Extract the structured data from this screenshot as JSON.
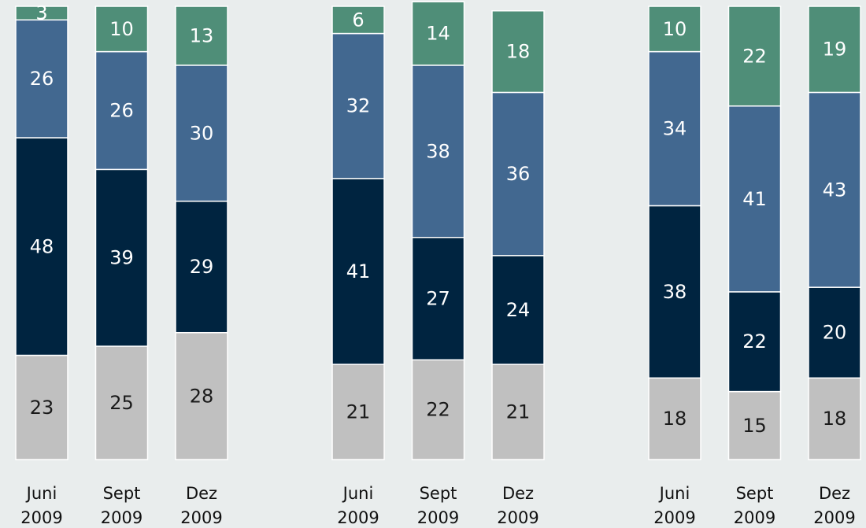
{
  "chart_data": [
    {
      "type": "stacked-bar",
      "categories": [
        "Juni 2009",
        "Sept 2009",
        "Dez 2009"
      ],
      "ylim": [
        0,
        100
      ],
      "series": [
        {
          "color": "#c0c0c0",
          "values": [
            23,
            25,
            28
          ]
        },
        {
          "color": "#002440",
          "values": [
            48,
            39,
            29
          ]
        },
        {
          "color": "#426890",
          "values": [
            26,
            26,
            30
          ]
        },
        {
          "color": "#4f8e78",
          "values": [
            3,
            10,
            13
          ]
        }
      ]
    },
    {
      "type": "stacked-bar",
      "categories": [
        "Juni 2009",
        "Sept 2009",
        "Dez 2009"
      ],
      "ylim": [
        0,
        100
      ],
      "series": [
        {
          "color": "#c0c0c0",
          "values": [
            21,
            22,
            21
          ]
        },
        {
          "color": "#002440",
          "values": [
            41,
            27,
            24
          ]
        },
        {
          "color": "#426890",
          "values": [
            32,
            38,
            36
          ]
        },
        {
          "color": "#4f8e78",
          "values": [
            6,
            14,
            18
          ]
        }
      ]
    },
    {
      "type": "stacked-bar",
      "categories": [
        "Juni 2009",
        "Sept 2009",
        "Dez 2009"
      ],
      "ylim": [
        0,
        100
      ],
      "series": [
        {
          "color": "#c0c0c0",
          "values": [
            18,
            15,
            18
          ]
        },
        {
          "color": "#002440",
          "values": [
            38,
            22,
            20
          ]
        },
        {
          "color": "#426890",
          "values": [
            34,
            41,
            43
          ]
        },
        {
          "color": "#4f8e78",
          "values": [
            10,
            22,
            19
          ]
        }
      ]
    }
  ]
}
